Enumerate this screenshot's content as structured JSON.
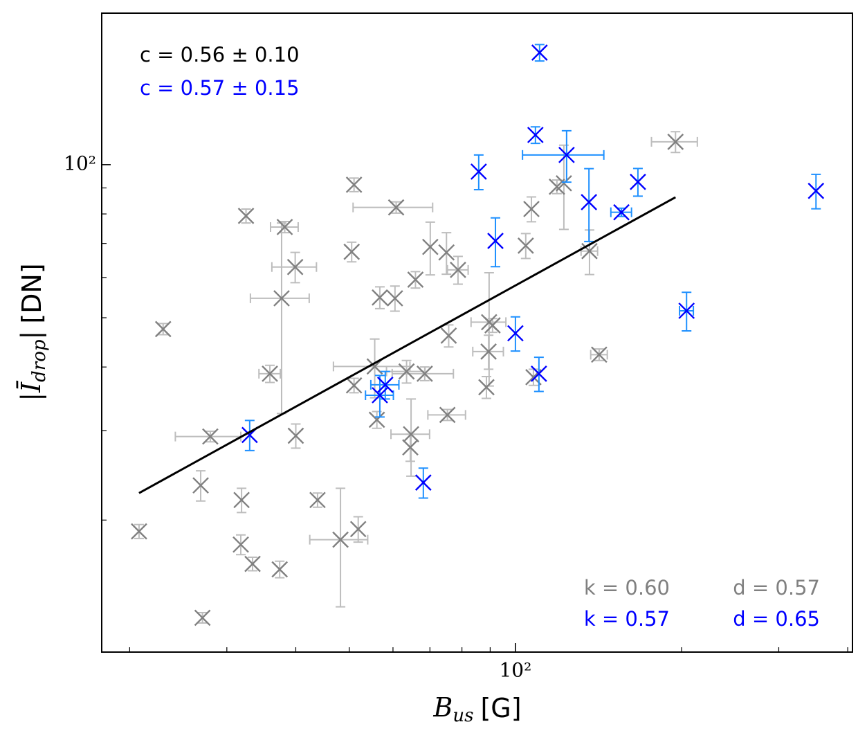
{
  "chart_data": {
    "type": "scatter",
    "xscale": "log",
    "yscale": "log",
    "xlabel": {
      "symbol": "B",
      "subscript": "us",
      "unit": "[G]"
    },
    "ylabel": {
      "open": "|",
      "symbol": "Ī",
      "subscript": "drop",
      "close": "|",
      "unit": "[DN]"
    },
    "xlim": [
      17.8,
      408
    ],
    "ylim": [
      11.0,
      198.6
    ],
    "xticks": [
      {
        "value": 100,
        "label": "10²"
      }
    ],
    "yticks": [
      {
        "value": 100,
        "label": "10²"
      }
    ],
    "xminorticks": [
      20,
      30,
      40,
      50,
      60,
      70,
      80,
      90,
      200,
      300,
      400
    ],
    "yminorticks": [
      20,
      30,
      40,
      50,
      60,
      70,
      80,
      90
    ],
    "series": [
      {
        "color": "#808080",
        "errcolor": "#bdbdbd",
        "x": [
          20.8,
          23.0,
          27.1,
          26.9,
          28.0,
          31.9,
          31.8,
          32.5,
          33.4,
          35.9,
          37.4,
          37.7,
          38.2,
          39.9,
          40.0,
          43.8,
          48.2,
          50.5,
          51.0,
          51.0,
          51.9,
          55.6,
          56.1,
          56.8,
          60.8,
          60.5,
          63.5,
          64.7,
          64.5,
          65.9,
          68.5,
          70.1,
          75.0,
          75.3,
          75.7,
          78.7,
          88.6,
          89.4,
          89.6,
          90.9,
          104.4,
          106.9,
          107.8,
          118.9,
          122.4,
          136.2,
          141.8,
          195.0
        ],
        "y": [
          19.0,
          47.5,
          12.85,
          23.4,
          29.2,
          21.9,
          17.9,
          79.3,
          16.4,
          38.8,
          16.0,
          54.6,
          75.4,
          62.9,
          29.3,
          21.9,
          18.3,
          67.4,
          91.3,
          36.8,
          19.2,
          40.1,
          31.5,
          54.8,
          82.4,
          54.6,
          39.2,
          29.5,
          27.8,
          59.4,
          38.8,
          68.9,
          67.2,
          32.2,
          46.1,
          62.1,
          36.5,
          42.9,
          49.0,
          48.3,
          69.3,
          81.8,
          38.2,
          90.5,
          91.9,
          67.6,
          42.3,
          110.9
        ],
        "xerr": [
          0,
          0,
          0,
          0,
          3.8,
          0,
          0,
          0,
          0,
          1.6,
          0,
          4.6,
          2.2,
          3.7,
          0,
          0,
          5.8,
          0,
          0,
          0,
          0,
          8.8,
          0,
          0,
          10.0,
          0,
          5.1,
          5.2,
          0,
          0,
          8.7,
          0,
          0,
          5.9,
          0,
          3.4,
          0,
          5.7,
          6.5,
          0,
          0,
          0,
          0,
          0,
          0,
          4.7,
          4.9,
          18.6
        ],
        "yerr": [
          0.6,
          1.2,
          0.3,
          1.6,
          0.7,
          1.2,
          0.8,
          2.5,
          0.5,
          1.5,
          0.6,
          22.2,
          1.9,
          4.3,
          1.6,
          0.7,
          4.8,
          3.0,
          2.8,
          1.2,
          1.1,
          5.3,
          1.2,
          2.7,
          2.1,
          3.1,
          2.0,
          5.1,
          1.7,
          2.2,
          1.2,
          8.2,
          6.3,
          0.8,
          2.3,
          3.9,
          1.8,
          3.3,
          12.3,
          1.5,
          3.9,
          4.6,
          1.4,
          2.8,
          17.3,
          6.8,
          1.1,
          5.2
        ]
      },
      {
        "color": "#0000ff",
        "errcolor": "#1e90ff",
        "x": [
          33.0,
          56.8,
          58.1,
          68.1,
          85.8,
          92.0,
          100,
          110.3,
          110.6,
          108.7,
          123.8,
          135.9,
          155.6,
          166.7,
          204.2,
          350.4
        ],
        "y": [
          29.4,
          35.2,
          36.9,
          23.7,
          96.9,
          70.8,
          46.6,
          38.8,
          166.1,
          114.4,
          104.5,
          84.4,
          80.6,
          92.5,
          51.6,
          88.8
        ],
        "xerr": [
          0,
          3.3,
          3.4,
          0,
          0,
          0,
          0,
          0,
          0,
          0,
          20.8,
          0,
          6.7,
          0,
          5.9,
          0
        ],
        "yerr": [
          2.0,
          3.3,
          2.3,
          1.6,
          7.6,
          7.8,
          3.6,
          3.0,
          6.2,
          4.3,
          12.1,
          13.8,
          1.5,
          5.8,
          4.5,
          6.9
        ]
      }
    ],
    "fit": {
      "x": [
        20.8,
        195.0
      ],
      "y": [
        22.6,
        86.3
      ],
      "color": "#000000"
    },
    "annotations": [
      {
        "text": "c = 0.56 ± 0.10",
        "color": "#000000",
        "corner": "top-left",
        "row": 0,
        "col": 0
      },
      {
        "text": "c = 0.57 ± 0.15",
        "color": "#0000ff",
        "corner": "top-left",
        "row": 1,
        "col": 0
      },
      {
        "text": "k = 0.60",
        "color": "#808080",
        "corner": "bottom-right",
        "row": 0,
        "col": 0
      },
      {
        "text": "d = 0.57",
        "color": "#808080",
        "corner": "bottom-right",
        "row": 0,
        "col": 1
      },
      {
        "text": "k = 0.57",
        "color": "#0000ff",
        "corner": "bottom-right",
        "row": 1,
        "col": 0
      },
      {
        "text": "d = 0.65",
        "color": "#0000ff",
        "corner": "bottom-right",
        "row": 1,
        "col": 1
      }
    ]
  }
}
